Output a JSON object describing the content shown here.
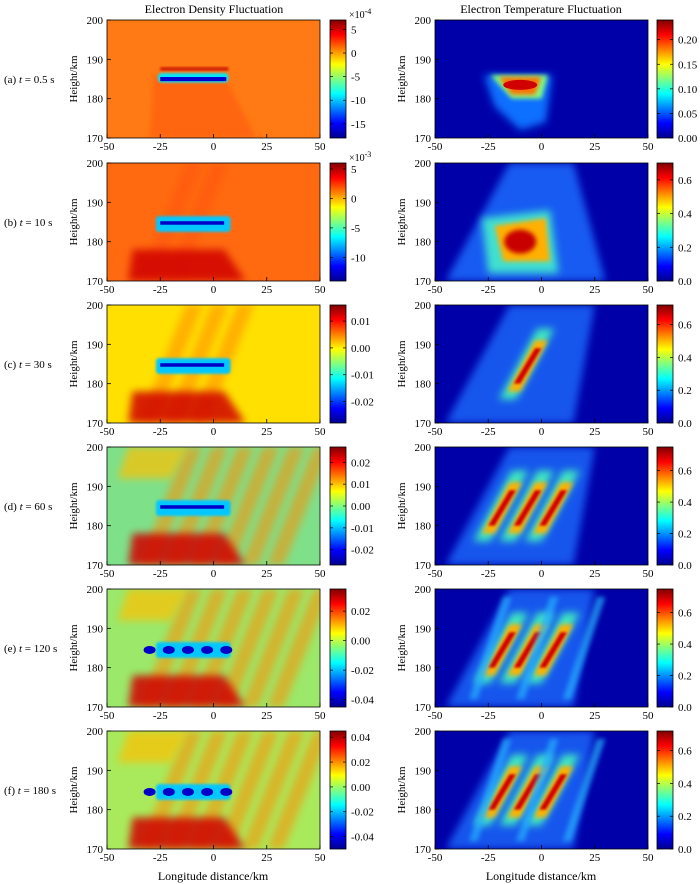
{
  "figure": {
    "column_titles": [
      "Electron Density Fluctuation",
      "Electron Temperature Fluctuation"
    ],
    "row_labels": [
      {
        "prefix": "(a) ",
        "var": "t",
        "suffix": " = 0.5 s"
      },
      {
        "prefix": "(b) ",
        "var": "t",
        "suffix": " = 10 s"
      },
      {
        "prefix": "(c) ",
        "var": "t",
        "suffix": " = 30 s"
      },
      {
        "prefix": "(d) ",
        "var": "t",
        "suffix": " = 60 s"
      },
      {
        "prefix": "(e) ",
        "var": "t",
        "suffix": " = 120 s"
      },
      {
        "prefix": "(f) ",
        "var": "t",
        "suffix": " = 180 s"
      }
    ],
    "ylabel": "Height/km",
    "xlabel": "Longitude distance/km",
    "x_ticks": [
      "-50",
      "-25",
      "0",
      "25",
      "50"
    ],
    "y_ticks": [
      "170",
      "180",
      "190",
      "200"
    ]
  },
  "colors": {
    "jet": [
      "#00008f",
      "#0000ff",
      "#0080ff",
      "#00ffff",
      "#80ff80",
      "#ffff00",
      "#ff8000",
      "#ff0000",
      "#800000"
    ]
  },
  "chart_data": [
    {
      "panel": "a-density",
      "type": "heatmap",
      "x_range": [
        -50,
        50
      ],
      "y_range": [
        170,
        200
      ],
      "colorbar_ticks": [
        "5",
        "0",
        "-5",
        "-10",
        "-15"
      ],
      "colorbar_range": [
        -18,
        7
      ],
      "colorbar_scale": "×10",
      "colorbar_exp": "-4"
    },
    {
      "panel": "a-temperature",
      "type": "heatmap",
      "x_range": [
        -50,
        50
      ],
      "y_range": [
        170,
        200
      ],
      "colorbar_ticks": [
        "0.20",
        "0.15",
        "0.10",
        "0.05",
        "0.00"
      ],
      "colorbar_range": [
        0,
        0.24
      ]
    },
    {
      "panel": "b-density",
      "type": "heatmap",
      "x_range": [
        -50,
        50
      ],
      "y_range": [
        170,
        200
      ],
      "colorbar_ticks": [
        "5",
        "0",
        "-5",
        "-10"
      ],
      "colorbar_range": [
        -14,
        6
      ],
      "colorbar_scale": "×10",
      "colorbar_exp": "-3"
    },
    {
      "panel": "b-temperature",
      "type": "heatmap",
      "x_range": [
        -50,
        50
      ],
      "y_range": [
        170,
        200
      ],
      "colorbar_ticks": [
        "0.6",
        "0.4",
        "0.2",
        "0.0"
      ],
      "colorbar_range": [
        0,
        0.7
      ]
    },
    {
      "panel": "c-density",
      "type": "heatmap",
      "x_range": [
        -50,
        50
      ],
      "y_range": [
        170,
        200
      ],
      "colorbar_ticks": [
        "0.01",
        "0.00",
        "-0.01",
        "-0.02"
      ],
      "colorbar_range": [
        -0.028,
        0.016
      ]
    },
    {
      "panel": "c-temperature",
      "type": "heatmap",
      "x_range": [
        -50,
        50
      ],
      "y_range": [
        170,
        200
      ],
      "colorbar_ticks": [
        "0.6",
        "0.4",
        "0.2",
        "0.0"
      ],
      "colorbar_range": [
        0,
        0.72
      ]
    },
    {
      "panel": "d-density",
      "type": "heatmap",
      "x_range": [
        -50,
        50
      ],
      "y_range": [
        170,
        200
      ],
      "colorbar_ticks": [
        "0.02",
        "0.01",
        "0.00",
        "-0.01",
        "-0.02"
      ],
      "colorbar_range": [
        -0.027,
        0.027
      ]
    },
    {
      "panel": "d-temperature",
      "type": "heatmap",
      "x_range": [
        -50,
        50
      ],
      "y_range": [
        170,
        200
      ],
      "colorbar_ticks": [
        "0.6",
        "0.4",
        "0.2",
        "0.0"
      ],
      "colorbar_range": [
        0,
        0.75
      ]
    },
    {
      "panel": "e-density",
      "type": "heatmap",
      "x_range": [
        -50,
        50
      ],
      "y_range": [
        170,
        200
      ],
      "colorbar_ticks": [
        "0.02",
        "0.00",
        "-0.02",
        "-0.04"
      ],
      "colorbar_range": [
        -0.045,
        0.035
      ]
    },
    {
      "panel": "e-temperature",
      "type": "heatmap",
      "x_range": [
        -50,
        50
      ],
      "y_range": [
        170,
        200
      ],
      "colorbar_ticks": [
        "0.6",
        "0.4",
        "0.2",
        "0.0"
      ],
      "colorbar_range": [
        0,
        0.75
      ]
    },
    {
      "panel": "f-density",
      "type": "heatmap",
      "x_range": [
        -50,
        50
      ],
      "y_range": [
        170,
        200
      ],
      "colorbar_ticks": [
        "0.04",
        "0.02",
        "0.00",
        "-0.02",
        "-0.04"
      ],
      "colorbar_range": [
        -0.05,
        0.045
      ]
    },
    {
      "panel": "f-temperature",
      "type": "heatmap",
      "x_range": [
        -50,
        50
      ],
      "y_range": [
        170,
        200
      ],
      "colorbar_ticks": [
        "0.6",
        "0.4",
        "0.2",
        "0.0"
      ],
      "colorbar_range": [
        0,
        0.72
      ]
    }
  ]
}
